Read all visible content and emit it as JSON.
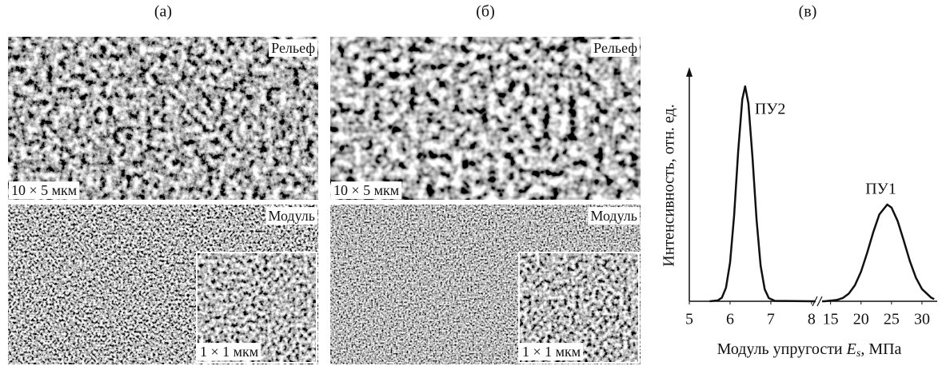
{
  "panels": [
    {
      "label": "(а)",
      "top": {
        "tag": "Рельеф",
        "scale": "10 × 5 мкм"
      },
      "bottom": {
        "tag": "Модуль",
        "inset_scale": "1 × 1 мкм"
      }
    },
    {
      "label": "(б)",
      "top": {
        "tag": "Рельеф",
        "scale": "10 × 5 мкм"
      },
      "bottom": {
        "tag": "Модуль",
        "inset_scale": "1 × 1 мкм"
      }
    }
  ],
  "chart_data": {
    "type": "line",
    "panel_label": "(в)",
    "ylabel": "Интенсивность, отн. ед.",
    "xlabel_parts": [
      "Модуль упругости ",
      "E",
      "s",
      ", МПа"
    ],
    "ylim": [
      0,
      1.03
    ],
    "x_segments": [
      {
        "xlim": [
          5,
          8.1
        ],
        "xticks": [
          5,
          6,
          7,
          8
        ]
      },
      {
        "xlim": [
          13.6,
          32.5
        ],
        "xticks": [
          15,
          20,
          25,
          30
        ]
      }
    ],
    "series": [
      {
        "name": "ПУ2",
        "color": "#111111",
        "segment": 0,
        "x": [
          5.5,
          5.7,
          5.8,
          5.9,
          6.0,
          6.1,
          6.2,
          6.3,
          6.37,
          6.45,
          6.55,
          6.65,
          6.75,
          6.85,
          6.95,
          7.1,
          8.1
        ],
        "values": [
          0,
          0.004,
          0.017,
          0.063,
          0.18,
          0.4,
          0.7,
          0.94,
          1.0,
          0.92,
          0.67,
          0.38,
          0.165,
          0.056,
          0.015,
          0.002,
          0
        ]
      },
      {
        "name": "ПУ1",
        "color": "#111111",
        "segment": 1,
        "x": [
          13.6,
          14,
          16,
          17,
          18,
          19,
          20,
          21,
          22,
          23,
          24.3,
          25,
          26,
          27,
          28,
          29,
          30,
          31.5,
          32
        ],
        "values": [
          0,
          0,
          0.006,
          0.015,
          0.036,
          0.075,
          0.138,
          0.225,
          0.321,
          0.404,
          0.45,
          0.436,
          0.374,
          0.283,
          0.188,
          0.11,
          0.057,
          0.017,
          0.01
        ]
      }
    ]
  }
}
